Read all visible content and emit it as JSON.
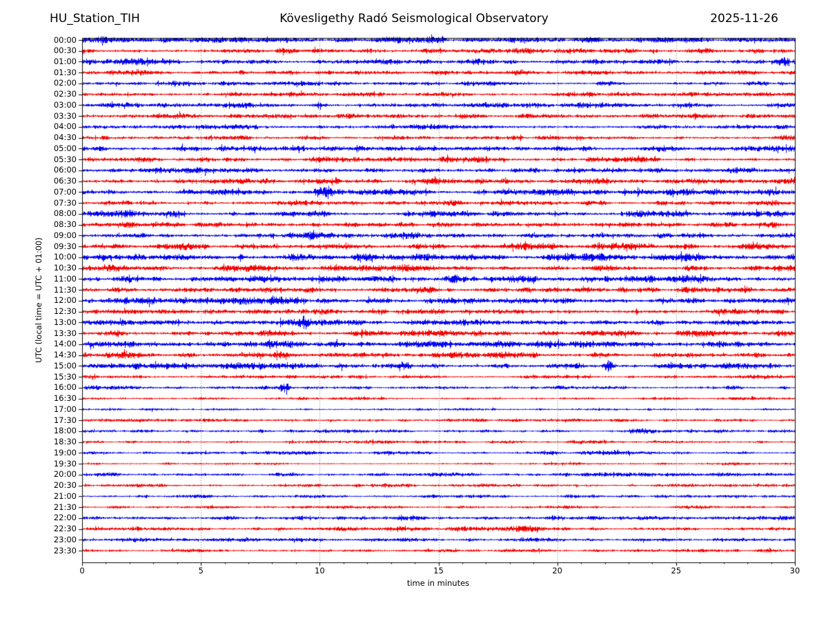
{
  "header": {
    "station": "HU_Station_TIH",
    "title": "Kövesligethy Radó Seismological Observatory",
    "date": "2025-11-26"
  },
  "axes": {
    "xlabel": "time in minutes",
    "ylabel": "UTC (local time = UTC + 01:00)",
    "x_ticks": [
      0,
      5,
      10,
      15,
      20,
      25,
      30
    ],
    "grid_minutes": [
      5,
      10,
      15,
      20,
      25
    ]
  },
  "chart_data": {
    "type": "line",
    "subtype": "helicorder-dayplot",
    "title": "Kövesligethy Radó Seismological Observatory",
    "date": "2025-11-26",
    "station": "HU_Station_TIH",
    "xlabel": "time in minutes",
    "ylabel": "UTC (local time = UTC + 01:00)",
    "x_range_minutes": [
      0,
      30
    ],
    "trace_interval_minutes": 30,
    "grid": true,
    "colors": {
      "even_trace": "#0000f0",
      "odd_trace": "#f50000"
    },
    "traces": [
      {
        "label": "00:00",
        "color": "#0000f0",
        "amp": 2.2,
        "events": []
      },
      {
        "label": "00:30",
        "color": "#f50000",
        "amp": 2.0,
        "events": []
      },
      {
        "label": "01:00",
        "color": "#0000f0",
        "amp": 2.2,
        "events": [
          {
            "t": 29.5,
            "a": 1.8,
            "w": 0.25
          }
        ]
      },
      {
        "label": "01:30",
        "color": "#f50000",
        "amp": 2.0,
        "events": []
      },
      {
        "label": "02:00",
        "color": "#0000f0",
        "amp": 1.8,
        "events": []
      },
      {
        "label": "02:30",
        "color": "#f50000",
        "amp": 1.7,
        "events": []
      },
      {
        "label": "03:00",
        "color": "#0000f0",
        "amp": 1.9,
        "events": [
          {
            "t": 10.0,
            "a": 1.4,
            "w": 0.25
          }
        ]
      },
      {
        "label": "03:30",
        "color": "#f50000",
        "amp": 1.9,
        "events": []
      },
      {
        "label": "04:00",
        "color": "#0000f0",
        "amp": 1.8,
        "events": []
      },
      {
        "label": "04:30",
        "color": "#f50000",
        "amp": 1.8,
        "events": []
      },
      {
        "label": "05:00",
        "color": "#0000f0",
        "amp": 2.1,
        "events": []
      },
      {
        "label": "05:30",
        "color": "#f50000",
        "amp": 2.0,
        "events": []
      },
      {
        "label": "06:00",
        "color": "#0000f0",
        "amp": 2.4,
        "events": []
      },
      {
        "label": "06:30",
        "color": "#f50000",
        "amp": 2.2,
        "events": [
          {
            "t": 21.6,
            "a": 1.6,
            "w": 0.8
          }
        ]
      },
      {
        "label": "07:00",
        "color": "#0000f0",
        "amp": 2.2,
        "events": [
          {
            "t": 9.95,
            "a": 3.2,
            "w": 0.1
          },
          {
            "t": 10.35,
            "a": 5.5,
            "w": 0.12
          }
        ]
      },
      {
        "label": "07:30",
        "color": "#f50000",
        "amp": 1.9,
        "events": []
      },
      {
        "label": "08:00",
        "color": "#0000f0",
        "amp": 2.2,
        "events": [
          {
            "t": 1.7,
            "a": 1.6,
            "w": 0.4
          }
        ]
      },
      {
        "label": "08:30",
        "color": "#f50000",
        "amp": 2.1,
        "events": []
      },
      {
        "label": "09:00",
        "color": "#0000f0",
        "amp": 2.2,
        "events": [
          {
            "t": 9.7,
            "a": 4.0,
            "w": 0.1
          }
        ]
      },
      {
        "label": "09:30",
        "color": "#f50000",
        "amp": 2.3,
        "events": []
      },
      {
        "label": "10:00",
        "color": "#0000f0",
        "amp": 2.7,
        "events": [
          {
            "t": 8.9,
            "a": 2.2,
            "w": 0.12
          }
        ]
      },
      {
        "label": "10:30",
        "color": "#f50000",
        "amp": 2.4,
        "events": []
      },
      {
        "label": "11:00",
        "color": "#0000f0",
        "amp": 2.4,
        "events": [
          {
            "t": 15.6,
            "a": 1.2,
            "w": 0.5
          },
          {
            "t": 18.6,
            "a": 1.2,
            "w": 0.5
          }
        ]
      },
      {
        "label": "11:30",
        "color": "#f50000",
        "amp": 2.2,
        "events": []
      },
      {
        "label": "12:00",
        "color": "#0000f0",
        "amp": 2.4,
        "events": [
          {
            "t": 8.15,
            "a": 3.2,
            "w": 0.12
          }
        ]
      },
      {
        "label": "12:30",
        "color": "#f50000",
        "amp": 2.4,
        "events": []
      },
      {
        "label": "13:00",
        "color": "#0000f0",
        "amp": 2.4,
        "events": [
          {
            "t": 9.35,
            "a": 4.2,
            "w": 0.14
          }
        ]
      },
      {
        "label": "13:30",
        "color": "#f50000",
        "amp": 2.3,
        "events": []
      },
      {
        "label": "14:00",
        "color": "#0000f0",
        "amp": 2.7,
        "events": [
          {
            "t": 17.5,
            "a": 1.2,
            "w": 0.4
          }
        ]
      },
      {
        "label": "14:30",
        "color": "#f50000",
        "amp": 2.4,
        "events": [
          {
            "t": 18.0,
            "a": 1.8,
            "w": 0.7
          }
        ]
      },
      {
        "label": "15:00",
        "color": "#0000f0",
        "amp": 2.2,
        "events": [
          {
            "t": 2.2,
            "a": 2.8,
            "w": 0.14
          },
          {
            "t": 13.6,
            "a": 2.2,
            "w": 0.12
          },
          {
            "t": 22.15,
            "a": 5.0,
            "w": 0.15
          }
        ]
      },
      {
        "label": "15:30",
        "color": "#f50000",
        "amp": 1.5,
        "events": []
      },
      {
        "label": "16:00",
        "color": "#0000f0",
        "amp": 1.5,
        "events": [
          {
            "t": 7.7,
            "a": 1.5,
            "w": 0.12
          },
          {
            "t": 8.5,
            "a": 5.2,
            "w": 0.15
          }
        ]
      },
      {
        "label": "16:30",
        "color": "#f50000",
        "amp": 1.2,
        "events": []
      },
      {
        "label": "17:00",
        "color": "#0000f0",
        "amp": 1.1,
        "events": []
      },
      {
        "label": "17:30",
        "color": "#f50000",
        "amp": 1.1,
        "events": []
      },
      {
        "label": "18:00",
        "color": "#0000f0",
        "amp": 1.3,
        "events": [
          {
            "t": 23.6,
            "a": 1.2,
            "w": 0.4
          }
        ]
      },
      {
        "label": "18:30",
        "color": "#f50000",
        "amp": 1.2,
        "events": []
      },
      {
        "label": "19:00",
        "color": "#0000f0",
        "amp": 1.3,
        "events": [
          {
            "t": 22.0,
            "a": 1.3,
            "w": 0.5
          }
        ]
      },
      {
        "label": "19:30",
        "color": "#f50000",
        "amp": 1.1,
        "events": []
      },
      {
        "label": "20:00",
        "color": "#0000f0",
        "amp": 1.3,
        "events": []
      },
      {
        "label": "20:30",
        "color": "#f50000",
        "amp": 1.2,
        "events": []
      },
      {
        "label": "21:00",
        "color": "#0000f0",
        "amp": 1.3,
        "events": []
      },
      {
        "label": "21:30",
        "color": "#f50000",
        "amp": 1.2,
        "events": []
      },
      {
        "label": "22:00",
        "color": "#0000f0",
        "amp": 1.8,
        "events": []
      },
      {
        "label": "22:30",
        "color": "#f50000",
        "amp": 1.5,
        "events": [
          {
            "t": 18.7,
            "a": 2.0,
            "w": 0.4
          }
        ]
      },
      {
        "label": "23:00",
        "color": "#0000f0",
        "amp": 1.5,
        "events": []
      },
      {
        "label": "23:30",
        "color": "#f50000",
        "amp": 1.3,
        "events": []
      }
    ]
  }
}
